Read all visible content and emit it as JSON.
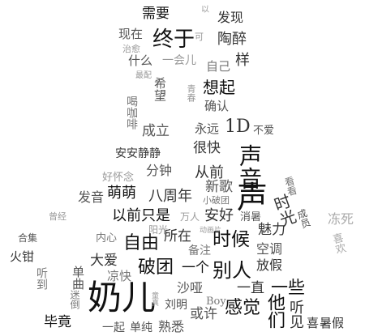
{
  "colors": {
    "background": "#ffffff",
    "black": "#111111",
    "dark": "#333333",
    "mid": "#555555",
    "gray": "#777777",
    "light": "#999999",
    "pale": "#aaaaaa"
  },
  "words": [
    {
      "text": "需要",
      "color": "black"
    },
    {
      "text": "以",
      "color": "light"
    },
    {
      "text": "发现",
      "color": "dark"
    },
    {
      "text": "现在",
      "color": "mid"
    },
    {
      "text": "终于",
      "color": "black"
    },
    {
      "text": "可",
      "color": "light"
    },
    {
      "text": "陶醉",
      "color": "dark"
    },
    {
      "text": "治愈",
      "color": "light"
    },
    {
      "text": "什么",
      "color": "mid"
    },
    {
      "text": "一会儿",
      "color": "light"
    },
    {
      "text": "样",
      "color": "dark"
    },
    {
      "text": "自己",
      "color": "gray"
    },
    {
      "text": "最配",
      "color": "light"
    },
    {
      "text": "希望",
      "color": "mid"
    },
    {
      "text": "想起",
      "color": "black"
    },
    {
      "text": "青春",
      "color": "light"
    },
    {
      "text": "确认",
      "color": "mid"
    },
    {
      "text": "喝咖啡",
      "color": "gray"
    },
    {
      "text": "成立",
      "color": "mid"
    },
    {
      "text": "永远",
      "color": "mid"
    },
    {
      "text": "1D",
      "color": "dark"
    },
    {
      "text": "不爱",
      "color": "mid"
    },
    {
      "text": "很快",
      "color": "dark"
    },
    {
      "text": "安安静静",
      "color": "dark"
    },
    {
      "text": "声音",
      "color": "black"
    },
    {
      "text": "分钟",
      "color": "mid"
    },
    {
      "text": "从前",
      "color": "dark"
    },
    {
      "text": "好怀念",
      "color": "light"
    },
    {
      "text": "新歌",
      "color": "mid"
    },
    {
      "text": "萌萌",
      "color": "black"
    },
    {
      "text": "发音",
      "color": "mid"
    },
    {
      "text": "八周年",
      "color": "dark"
    },
    {
      "text": "小破团",
      "color": "gray"
    },
    {
      "text": "声",
      "color": "black"
    },
    {
      "text": "看看",
      "color": "gray"
    },
    {
      "text": "曾经",
      "color": "light"
    },
    {
      "text": "以前只是",
      "color": "black"
    },
    {
      "text": "万人",
      "color": "light"
    },
    {
      "text": "安好",
      "color": "dark"
    },
    {
      "text": "消暑",
      "color": "mid"
    },
    {
      "text": "时光",
      "color": "dark"
    },
    {
      "text": "成员",
      "color": "mid"
    },
    {
      "text": "冻死",
      "color": "pale"
    },
    {
      "text": "阳光",
      "color": "light"
    },
    {
      "text": "动画片",
      "color": "light"
    },
    {
      "text": "魅力",
      "color": "dark"
    },
    {
      "text": "合集",
      "color": "mid"
    },
    {
      "text": "内心",
      "color": "gray"
    },
    {
      "text": "自由",
      "color": "black"
    },
    {
      "text": "所在",
      "color": "dark"
    },
    {
      "text": "时候",
      "color": "black"
    },
    {
      "text": "空调",
      "color": "mid"
    },
    {
      "text": "火钳",
      "color": "dark"
    },
    {
      "text": "喜欢",
      "color": "pale"
    },
    {
      "text": "大爱",
      "color": "dark"
    },
    {
      "text": "备注",
      "color": "gray"
    },
    {
      "text": "破团",
      "color": "black"
    },
    {
      "text": "一个",
      "color": "black"
    },
    {
      "text": "放假",
      "color": "dark"
    },
    {
      "text": "听到",
      "color": "gray"
    },
    {
      "text": "单曲",
      "color": "mid"
    },
    {
      "text": "凉快",
      "color": "gray"
    },
    {
      "text": "别人",
      "color": "black"
    },
    {
      "text": "沙哑",
      "color": "mid"
    },
    {
      "text": "一直",
      "color": "dark"
    },
    {
      "text": "一些",
      "color": "black"
    },
    {
      "text": "奶儿",
      "color": "black"
    },
    {
      "text": "迷倒",
      "color": "gray"
    },
    {
      "text": "童真",
      "color": "light"
    },
    {
      "text": "Boy",
      "color": "gray"
    },
    {
      "text": "刘明",
      "color": "mid"
    },
    {
      "text": "或许",
      "color": "mid"
    },
    {
      "text": "感觉",
      "color": "black"
    },
    {
      "text": "他们",
      "color": "black"
    },
    {
      "text": "听见",
      "color": "dark"
    },
    {
      "text": "毕竟",
      "color": "black"
    },
    {
      "text": "一起",
      "color": "mid"
    },
    {
      "text": "单纯",
      "color": "mid"
    },
    {
      "text": "熟悉",
      "color": "mid"
    },
    {
      "text": "喜",
      "color": "dark"
    },
    {
      "text": "暑假",
      "color": "dark"
    }
  ]
}
